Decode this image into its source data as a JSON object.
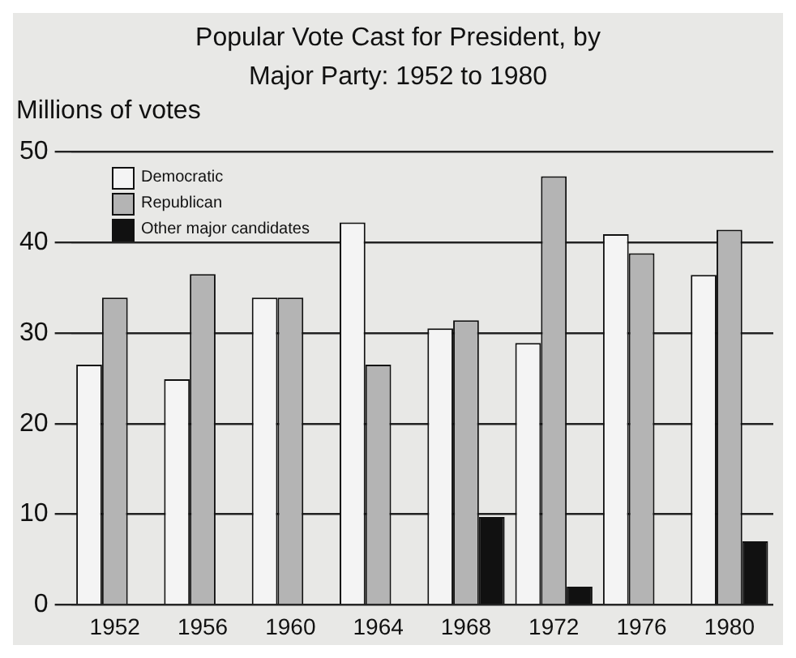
{
  "chart_data": {
    "type": "bar",
    "title": "Popular Vote Cast for President, by Major Party: 1952 to 1980",
    "ylabel": "Millions of votes",
    "categories": [
      "1952",
      "1956",
      "1960",
      "1964",
      "1968",
      "1972",
      "1976",
      "1980"
    ],
    "series": [
      {
        "name": "Democratic",
        "color": "#f4f4f4",
        "values": [
          26.5,
          24.9,
          33.9,
          42.2,
          30.5,
          28.9,
          40.9,
          36.4
        ]
      },
      {
        "name": "Republican",
        "color": "#b4b4b4",
        "values": [
          33.9,
          36.5,
          33.9,
          26.5,
          31.4,
          47.3,
          38.8,
          41.4
        ]
      },
      {
        "name": "Other major candidates",
        "color": "#111111",
        "values": [
          null,
          null,
          null,
          null,
          9.7,
          2.0,
          null,
          7.0
        ]
      }
    ],
    "ylim": [
      0,
      50
    ],
    "yticks": [
      0,
      10,
      20,
      30,
      40,
      50
    ],
    "grid": "y",
    "legend": "top left"
  }
}
